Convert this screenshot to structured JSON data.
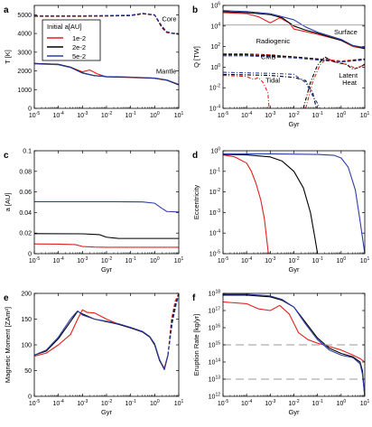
{
  "colors": {
    "red": "#e0201f",
    "black": "#000000",
    "blue": "#2c3ea8",
    "gray": "#9a9a9a"
  },
  "legend": {
    "title": "Initial a[AU]",
    "entries": [
      "1e-2",
      "2e-2",
      "5e-2"
    ]
  },
  "chart_data": [
    {
      "id": "a",
      "letter": "a",
      "type": "line",
      "xlabel": "",
      "ylabel": "T [K]",
      "xscale": "log",
      "xlim": [
        -5,
        1
      ],
      "yscale": "linear",
      "ylim": [
        0,
        5500
      ],
      "yticks": [
        0,
        1000,
        2000,
        3000,
        4000,
        5000
      ],
      "annotations": [
        {
          "text": "Core",
          "x": 0.3,
          "y": 4650
        },
        {
          "text": "Mantle",
          "x": 0.06,
          "y": 1850
        }
      ],
      "series": [
        {
          "name": "1e-2",
          "color": "red",
          "dash": "dash",
          "x": [
            -5,
            -4,
            -3,
            -2,
            -1,
            -0.5,
            0,
            0.3,
            0.5,
            0.7,
            1
          ],
          "y": [
            4920,
            4920,
            4920,
            4930,
            4950,
            5050,
            4980,
            4300,
            4050,
            4010,
            3950
          ]
        },
        {
          "name": "2e-2",
          "color": "black",
          "dash": "dash",
          "x": [
            -5,
            -4,
            -3,
            -2,
            -1,
            -0.5,
            0,
            0.3,
            0.5,
            0.7,
            1
          ],
          "y": [
            4930,
            4930,
            4930,
            4940,
            4960,
            5060,
            4990,
            4350,
            4080,
            4020,
            3970
          ]
        },
        {
          "name": "5e-2",
          "color": "blue",
          "dash": "dash",
          "x": [
            -5,
            -4,
            -3,
            -2,
            -1,
            -0.5,
            0,
            0.3,
            0.5,
            0.7,
            1
          ],
          "y": [
            4950,
            4950,
            4950,
            4960,
            4980,
            5080,
            5000,
            4400,
            4100,
            4030,
            3980
          ]
        },
        {
          "name": "1e-2",
          "color": "red",
          "dash": "solid",
          "x": [
            -5,
            -4,
            -3.5,
            -3,
            -2.7,
            -2.4,
            -2,
            -1,
            0,
            0.5,
            1
          ],
          "y": [
            2400,
            2350,
            2200,
            1950,
            2050,
            1850,
            1680,
            1650,
            1600,
            1500,
            1250
          ]
        },
        {
          "name": "2e-2",
          "color": "black",
          "dash": "solid",
          "x": [
            -5,
            -4,
            -3.5,
            -3,
            -2.5,
            -2,
            -1,
            0,
            0.5,
            1
          ],
          "y": [
            2400,
            2350,
            2200,
            1900,
            1750,
            1690,
            1660,
            1610,
            1510,
            1260
          ]
        },
        {
          "name": "5e-2",
          "color": "blue",
          "dash": "solid",
          "x": [
            -5,
            -4,
            -3.5,
            -3,
            -2.5,
            -2,
            -1,
            0,
            0.5,
            1
          ],
          "y": [
            2380,
            2330,
            2180,
            1880,
            1740,
            1700,
            1670,
            1620,
            1520,
            1280
          ]
        }
      ]
    },
    {
      "id": "b",
      "letter": "b",
      "type": "line",
      "xlabel": "Gyr",
      "ylabel": "Q [TW]",
      "xscale": "log",
      "xlim": [
        -5,
        1
      ],
      "yscale": "log",
      "ylim": [
        -4,
        6
      ],
      "yticks": [
        -4,
        -2,
        0,
        2,
        4,
        6
      ],
      "annotations": [
        {
          "text": "Surface",
          "x": -0.3,
          "y": 3.2
        },
        {
          "text": "Radiogenic",
          "x": -3.6,
          "y": 2.3
        },
        {
          "text": "CMB",
          "x": -3.4,
          "y": 0.8
        },
        {
          "text": "Tidal",
          "x": -3.2,
          "y": -1.5
        },
        {
          "text": "Latent",
          "x": -0.1,
          "y": -1.0
        },
        {
          "text": "Heat",
          "x": 0.05,
          "y": -1.7
        }
      ],
      "series": [
        {
          "name": "1e-2",
          "color": "red",
          "dash": "solid",
          "x": [
            -5,
            -4,
            -3.5,
            -3,
            -2.6,
            -2.2,
            -2,
            -1,
            0,
            0.5,
            1
          ],
          "y": [
            5.3,
            5.2,
            4.9,
            4.3,
            4.8,
            4.3,
            3.7,
            3.2,
            2.6,
            2.0,
            1.8
          ]
        },
        {
          "name": "2e-2",
          "color": "black",
          "dash": "solid",
          "x": [
            -5,
            -4,
            -3,
            -2.5,
            -2,
            -1.5,
            -1,
            0,
            0.5,
            1
          ],
          "y": [
            5.4,
            5.3,
            5.1,
            4.8,
            4.0,
            3.6,
            3.3,
            2.6,
            2.1,
            1.8
          ]
        },
        {
          "name": "5e-2",
          "color": "blue",
          "dash": "solid",
          "x": [
            -5,
            -4,
            -3,
            -2,
            -1.5,
            -1,
            0,
            0.5,
            1
          ],
          "y": [
            5.5,
            5.4,
            5.2,
            4.6,
            3.9,
            3.4,
            2.7,
            2.1,
            1.9
          ]
        },
        {
          "name": "1e-2",
          "color": "gray",
          "dash": "solid",
          "x": [
            -5,
            1
          ],
          "y": [
            4.1,
            4.1
          ]
        },
        {
          "name": "1e-2",
          "color": "red",
          "dash": "dash",
          "x": [
            -5,
            -4,
            -3,
            -2,
            -1,
            0,
            1
          ],
          "y": [
            1.3,
            1.3,
            1.2,
            1.0,
            0.8,
            0.6,
            0.8
          ]
        },
        {
          "name": "2e-2",
          "color": "black",
          "dash": "dash",
          "x": [
            -5,
            -4,
            -3,
            -2,
            -1,
            0,
            1
          ],
          "y": [
            1.2,
            1.2,
            1.1,
            1.0,
            0.8,
            0.5,
            0.8
          ]
        },
        {
          "name": "5e-2",
          "color": "blue",
          "dash": "dash",
          "x": [
            -5,
            -4,
            -3,
            -2,
            -1,
            0,
            1
          ],
          "y": [
            1.1,
            1.1,
            1.0,
            0.9,
            0.7,
            0.5,
            0.7
          ]
        },
        {
          "name": "1e-2",
          "color": "red",
          "dash": "dashdot",
          "x": [
            -5,
            -4,
            -3.7,
            -3.5,
            -3.3,
            -3.1,
            -3.05
          ],
          "y": [
            -0.8,
            -0.9,
            -1.2,
            -1.0,
            -1.5,
            -2.5,
            -4
          ]
        },
        {
          "name": "2e-2",
          "color": "black",
          "dash": "dashdot",
          "x": [
            -5,
            -3,
            -2,
            -1.5,
            -1.2,
            -1.05
          ],
          "y": [
            -0.7,
            -0.8,
            -1.0,
            -1.3,
            -2.5,
            -4
          ]
        },
        {
          "name": "5e-2",
          "color": "blue",
          "dash": "dashdot",
          "x": [
            -5,
            -3,
            -2,
            -1.5,
            -1.2,
            -1,
            -0.9
          ],
          "y": [
            -0.5,
            -0.6,
            -0.7,
            -1.5,
            -2.8,
            -3.5,
            -4
          ]
        },
        {
          "name": "2e-2",
          "color": "black",
          "dash": "dashdot",
          "x": [
            -1.6,
            -1.3,
            -1,
            -0.7,
            -0.4,
            -0.1,
            0.2,
            0.5,
            0.8,
            1
          ],
          "y": [
            -4,
            -1.5,
            0.2,
            1.0,
            0.6,
            0.4,
            0.3,
            -0.2,
            0.0,
            0.3
          ]
        },
        {
          "name": "1e-2",
          "color": "red",
          "dash": "dashdot",
          "x": [
            -1.5,
            -1.2,
            -0.9,
            -0.6,
            -0.3,
            0,
            0.3,
            0.6,
            1
          ],
          "y": [
            -4,
            -1.4,
            0.2,
            0.9,
            0.5,
            0.4,
            0.2,
            -0.1,
            0.2
          ]
        }
      ]
    },
    {
      "id": "c",
      "letter": "c",
      "type": "line",
      "xlabel": "Gyr",
      "ylabel": "a [AU]",
      "xscale": "log",
      "xlim": [
        -5,
        1
      ],
      "yscale": "linear",
      "ylim": [
        0,
        0.1
      ],
      "yticks": [
        0,
        0.02,
        0.04,
        0.06,
        0.08,
        0.1
      ],
      "series": [
        {
          "name": "1e-2",
          "color": "red",
          "dash": "solid",
          "x": [
            -5,
            -4,
            -3.3,
            -3,
            -2.5,
            -2,
            0,
            1
          ],
          "y": [
            0.0095,
            0.0093,
            0.0088,
            0.007,
            0.0064,
            0.0062,
            0.0062,
            0.0062
          ]
        },
        {
          "name": "2e-2",
          "color": "black",
          "dash": "solid",
          "x": [
            -5,
            -3,
            -2.3,
            -2,
            -1.5,
            0,
            1
          ],
          "y": [
            0.0195,
            0.0193,
            0.0185,
            0.016,
            0.0148,
            0.0148,
            0.0148
          ]
        },
        {
          "name": "5e-2",
          "color": "blue",
          "dash": "solid",
          "x": [
            -5,
            -2,
            -0.5,
            0,
            0.3,
            0.5,
            1
          ],
          "y": [
            0.0505,
            0.0505,
            0.0503,
            0.049,
            0.044,
            0.041,
            0.0405
          ]
        }
      ]
    },
    {
      "id": "d",
      "letter": "d",
      "type": "line",
      "xlabel": "Gyr",
      "ylabel": "Eccentricity",
      "xscale": "log",
      "xlim": [
        -5,
        1
      ],
      "yscale": "log",
      "ylim": [
        -5,
        0
      ],
      "yticks": [
        -5,
        -4,
        -3,
        -2,
        -1,
        0
      ],
      "series": [
        {
          "name": "1e-2",
          "color": "red",
          "dash": "solid",
          "x": [
            -5,
            -4.5,
            -4,
            -3.8,
            -3.6,
            -3.4,
            -3.25,
            -3.15,
            -3.08
          ],
          "y": [
            -0.2,
            -0.3,
            -0.6,
            -1,
            -1.6,
            -2.4,
            -3.3,
            -4.3,
            -5
          ]
        },
        {
          "name": "2e-2",
          "color": "black",
          "dash": "solid",
          "x": [
            -5,
            -4,
            -3,
            -2.5,
            -2,
            -1.6,
            -1.3,
            -1.1,
            -1.0
          ],
          "y": [
            -0.18,
            -0.2,
            -0.3,
            -0.5,
            -1.0,
            -1.8,
            -3,
            -4.3,
            -5
          ]
        },
        {
          "name": "5e-2",
          "color": "blue",
          "dash": "solid",
          "x": [
            -5,
            -3,
            -1,
            -0.3,
            0,
            0.3,
            0.6,
            0.8,
            1
          ],
          "y": [
            -0.15,
            -0.15,
            -0.18,
            -0.22,
            -0.35,
            -0.8,
            -1.9,
            -3.4,
            -5
          ]
        }
      ]
    },
    {
      "id": "e",
      "letter": "e",
      "type": "line",
      "xlabel": "Gyr",
      "ylabel": "Magnetic Moment [ZAm²]",
      "xscale": "log",
      "xlim": [
        -5,
        1
      ],
      "yscale": "linear",
      "ylim": [
        0,
        200
      ],
      "yticks": [
        0,
        50,
        100,
        150,
        200
      ],
      "series": [
        {
          "name": "1e-2",
          "color": "red",
          "dash": "solid",
          "x": [
            -5,
            -4.5,
            -4,
            -3.5,
            -3.2,
            -3,
            -2.8,
            -2.5,
            -2,
            -1.5,
            -1,
            -0.5,
            -0.2,
            0,
            0.2,
            0.4,
            0.55
          ],
          "y": [
            78,
            84,
            100,
            120,
            150,
            168,
            163,
            162,
            150,
            140,
            133,
            125,
            115,
            100,
            70,
            55,
            80
          ]
        },
        {
          "name": "2e-2",
          "color": "black",
          "dash": "solid",
          "x": [
            -5,
            -4.5,
            -4,
            -3.5,
            -3.2,
            -3,
            -2.5,
            -2,
            -1.5,
            -1,
            -0.5,
            -0.2,
            0,
            0.2,
            0.4,
            0.55
          ],
          "y": [
            80,
            88,
            112,
            145,
            165,
            160,
            150,
            145,
            140,
            133,
            125,
            115,
            100,
            70,
            52,
            80
          ]
        },
        {
          "name": "5e-2",
          "color": "blue",
          "dash": "solid",
          "x": [
            -5,
            -4.5,
            -4,
            -3.5,
            -3.2,
            -3,
            -2.5,
            -2,
            -1.5,
            -1,
            -0.5,
            -0.2,
            0,
            0.2,
            0.4,
            0.55
          ],
          "y": [
            80,
            90,
            115,
            150,
            166,
            158,
            150,
            146,
            141,
            134,
            126,
            116,
            102,
            72,
            52,
            80
          ]
        },
        {
          "name": "1e-2",
          "color": "red",
          "dash": "dash",
          "x": [
            0.55,
            0.7,
            0.85,
            1
          ],
          "y": [
            80,
            150,
            185,
            200
          ]
        },
        {
          "name": "2e-2",
          "color": "black",
          "dash": "dash",
          "x": [
            0.55,
            0.72,
            0.88,
            1
          ],
          "y": [
            80,
            148,
            182,
            198
          ]
        },
        {
          "name": "5e-2",
          "color": "blue",
          "dash": "dash",
          "x": [
            0.55,
            0.74,
            0.9,
            1
          ],
          "y": [
            80,
            145,
            180,
            196
          ]
        }
      ]
    },
    {
      "id": "f",
      "letter": "f",
      "type": "line",
      "xlabel": "Gyr",
      "ylabel": "Eruption Rate [kg/yr]",
      "xscale": "log",
      "xlim": [
        -5,
        1
      ],
      "yscale": "log",
      "ylim": [
        12,
        18
      ],
      "yticks": [
        12,
        13,
        14,
        15,
        16,
        17,
        18
      ],
      "series": [
        {
          "name": "1e-2",
          "color": "red",
          "dash": "solid",
          "x": [
            -5,
            -4,
            -3.5,
            -3,
            -2.6,
            -2.2,
            -1.8,
            -1.4,
            -1,
            -0.5,
            0,
            0.5,
            0.8,
            1
          ],
          "y": [
            17.5,
            17.4,
            17.1,
            17.0,
            17.3,
            16.8,
            15.7,
            15.3,
            15.1,
            14.9,
            14.7,
            14.4,
            14.2,
            14.0
          ]
        },
        {
          "name": "2e-2",
          "color": "black",
          "dash": "solid",
          "x": [
            -5,
            -4,
            -3,
            -2.5,
            -2,
            -1.5,
            -1,
            -0.5,
            0,
            0.5,
            0.8,
            0.9,
            1
          ],
          "y": [
            17.9,
            17.9,
            17.8,
            17.6,
            17.2,
            16.3,
            15.4,
            14.8,
            14.5,
            14.3,
            14.0,
            13.5,
            12.0
          ]
        },
        {
          "name": "5e-2",
          "color": "blue",
          "dash": "solid",
          "x": [
            -5,
            -4,
            -3,
            -2.5,
            -2,
            -1.5,
            -1,
            -0.5,
            0,
            0.5,
            0.8,
            0.9,
            1
          ],
          "y": [
            17.95,
            17.95,
            17.85,
            17.65,
            17.2,
            16.2,
            15.3,
            14.7,
            14.4,
            14.25,
            13.9,
            13.3,
            12.0
          ]
        },
        {
          "name": "1e-2",
          "color": "gray",
          "dash": "longdash",
          "x": [
            -5,
            1
          ],
          "y": [
            15,
            15
          ]
        },
        {
          "name": "1e-2",
          "color": "gray",
          "dash": "longdash",
          "x": [
            -5,
            1
          ],
          "y": [
            13,
            13
          ]
        }
      ]
    }
  ]
}
